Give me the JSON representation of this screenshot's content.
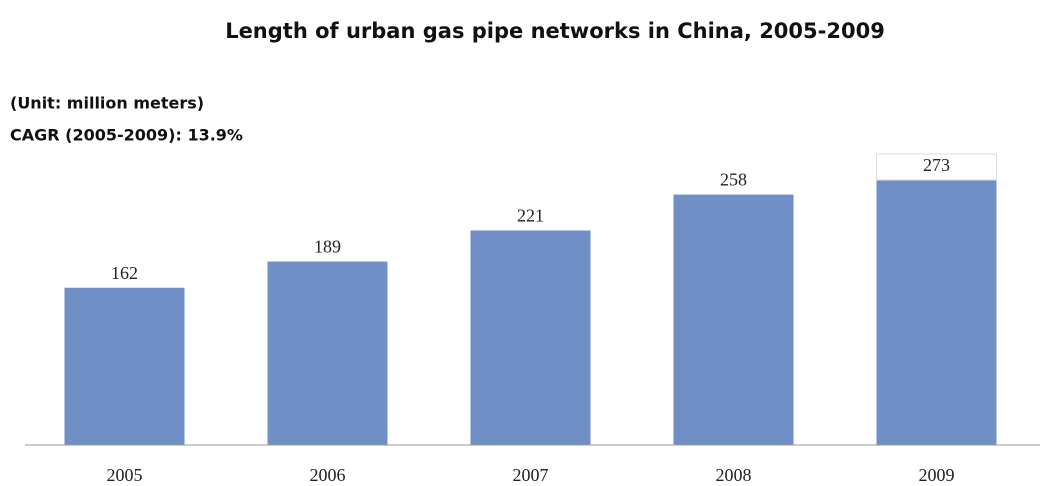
{
  "chart_data": {
    "type": "bar",
    "title": "Length of urban gas pipe networks in China, 2005-2009",
    "subtitle": "(Unit: million meters)",
    "annotation": "CAGR (2005-2009): 13.9%",
    "categories": [
      "2005",
      "2006",
      "2007",
      "2008",
      "2009"
    ],
    "values": [
      162,
      189,
      221,
      258,
      273
    ],
    "color": "#6f8fc6"
  }
}
